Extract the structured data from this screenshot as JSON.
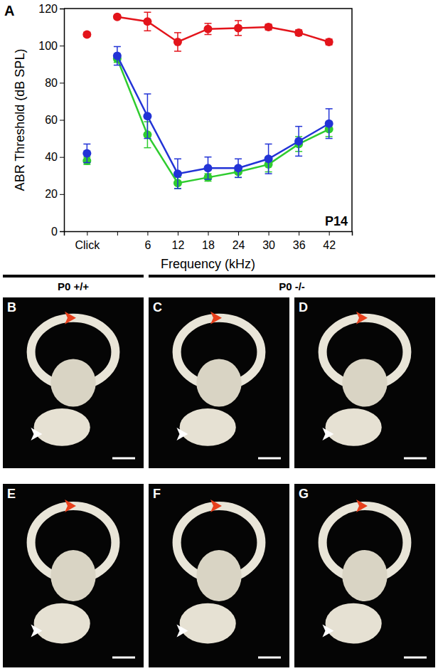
{
  "chart_data": {
    "type": "line",
    "x_label": "Frequency (kHz)",
    "y_label": "ABR Threshold (dB SPL)",
    "annotations": [
      "A",
      "P14"
    ],
    "categories": [
      "Click",
      null,
      "6",
      "12",
      "18",
      "24",
      "30",
      "36",
      "42"
    ],
    "ylim": [
      0,
      120
    ],
    "yticks": [
      0,
      20,
      40,
      60,
      80,
      100,
      120
    ],
    "grid": false,
    "series": [
      {
        "type": "scatter",
        "color": "#2fcc2f",
        "marker": "circle",
        "values": [
          38,
          null,
          null,
          null,
          null,
          null,
          null,
          null,
          null
        ],
        "errors": [
          2,
          null,
          null,
          null,
          null,
          null,
          null,
          null,
          null
        ]
      },
      {
        "type": "line",
        "color": "#2fcc2f",
        "marker": "circle",
        "values": [
          null,
          93,
          52,
          26,
          29,
          32,
          36,
          47,
          55
        ],
        "errors": [
          null,
          2,
          7,
          3,
          2,
          3,
          4,
          4,
          4
        ]
      },
      {
        "type": "scatter",
        "color": "#2233d6",
        "marker": "circle",
        "values": [
          42,
          null,
          null,
          null,
          null,
          null,
          null,
          null,
          null
        ],
        "errors": [
          5,
          null,
          null,
          null,
          null,
          null,
          null,
          null,
          null
        ]
      },
      {
        "type": "line",
        "color": "#2233d6",
        "marker": "circle",
        "values": [
          null,
          94.5,
          62,
          31,
          34,
          34,
          39,
          48.5,
          58
        ],
        "errors": [
          null,
          5,
          12,
          8,
          6,
          5,
          8,
          8,
          8
        ]
      },
      {
        "type": "scatter",
        "color": "#e3141b",
        "marker": "circle",
        "values": [
          106,
          null,
          null,
          null,
          null,
          null,
          null,
          null,
          null
        ],
        "errors": [
          1,
          null,
          null,
          null,
          null,
          null,
          null,
          null,
          null
        ]
      },
      {
        "type": "line",
        "color": "#e3141b",
        "marker": "circle",
        "values": [
          null,
          115.5,
          113,
          102,
          109,
          109.5,
          110,
          107,
          102
        ],
        "errors": [
          null,
          1,
          5,
          5,
          3,
          4,
          1.5,
          1.5,
          1.5
        ]
      }
    ]
  },
  "figure": {
    "headers": [
      "P0 +/+",
      "P0 -/-"
    ],
    "panels": [
      "B",
      "C",
      "D",
      "E",
      "F",
      "G"
    ]
  }
}
